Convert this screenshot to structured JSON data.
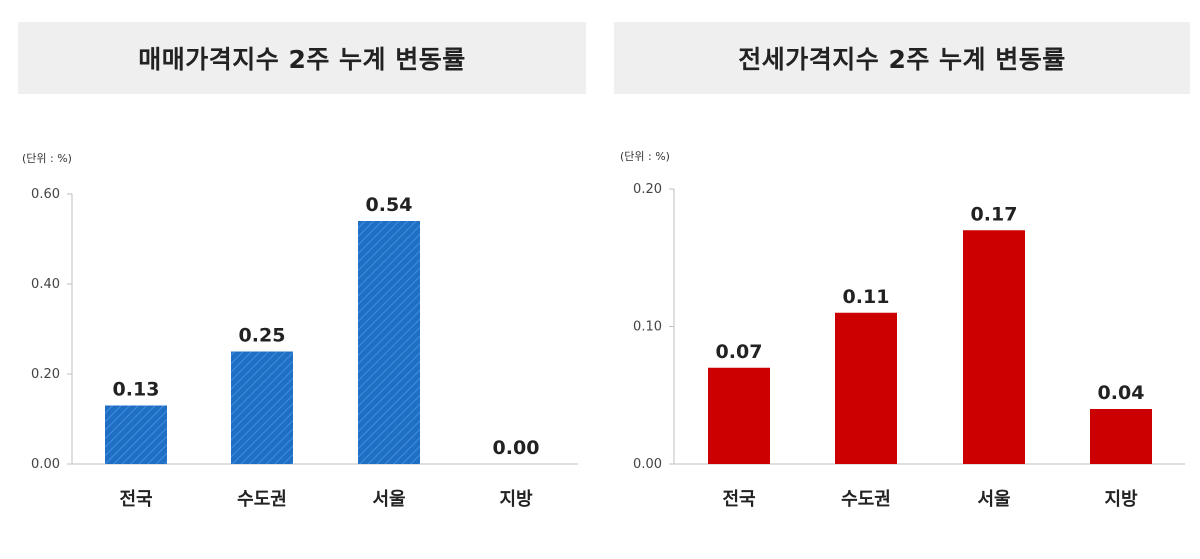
{
  "chart_data": [
    {
      "type": "bar",
      "title": "매매가격지수 2주 누계 변동률",
      "unit_label": "(단위 : %)",
      "categories": [
        "전국",
        "수도권",
        "서울",
        "지방"
      ],
      "values": [
        0.13,
        0.25,
        0.54,
        0.0
      ],
      "value_labels": [
        "0.13",
        "0.25",
        "0.54",
        "0.00"
      ],
      "yticks": [
        0.0,
        0.2,
        0.4,
        0.6
      ],
      "ytick_labels": [
        "0.00",
        "0.20",
        "0.40",
        "0.60"
      ],
      "ylim": [
        0,
        0.6
      ],
      "bar_color": "#1f6fc5",
      "bar_pattern": "diagonal-hatch",
      "grid": false
    },
    {
      "type": "bar",
      "title": "전세가격지수 2주 누계 변동률",
      "unit_label": "(단위 : %)",
      "categories": [
        "전국",
        "수도권",
        "서울",
        "지방"
      ],
      "values": [
        0.07,
        0.11,
        0.17,
        0.04
      ],
      "value_labels": [
        "0.07",
        "0.11",
        "0.17",
        "0.04"
      ],
      "yticks": [
        0.0,
        0.1,
        0.2
      ],
      "ytick_labels": [
        "0.00",
        "0.10",
        "0.20"
      ],
      "ylim": [
        0,
        0.2
      ],
      "bar_color": "#cc0000",
      "bar_pattern": "solid",
      "grid": false
    }
  ]
}
